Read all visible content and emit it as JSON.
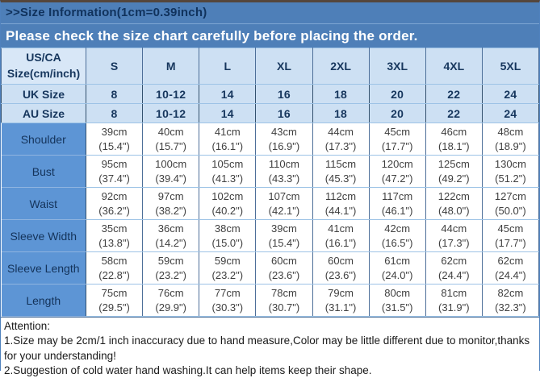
{
  "banner": {
    "title": ">>Size Information(1cm=0.39inch)",
    "subtitle": "Please check the size chart carefully before placing the order."
  },
  "table": {
    "corner": {
      "line1": "US/CA",
      "line2": "Size(cm/inch)"
    },
    "columns": [
      "S",
      "M",
      "L",
      "XL",
      "2XL",
      "3XL",
      "4XL",
      "5XL"
    ],
    "size_rows": [
      {
        "label": "UK Size",
        "values": [
          "8",
          "10-12",
          "14",
          "16",
          "18",
          "20",
          "22",
          "24"
        ]
      },
      {
        "label": "AU Size",
        "values": [
          "8",
          "10-12",
          "14",
          "16",
          "18",
          "20",
          "22",
          "24"
        ]
      }
    ],
    "measure_rows": [
      {
        "label": "Shoulder",
        "cm": [
          39,
          40,
          41,
          43,
          44,
          45,
          46,
          48
        ],
        "inch": [
          "15.4",
          "15.7",
          "16.1",
          "16.9",
          "17.3",
          "17.7",
          "18.1",
          "18.9"
        ]
      },
      {
        "label": "Bust",
        "cm": [
          95,
          100,
          105,
          110,
          115,
          120,
          125,
          130
        ],
        "inch": [
          "37.4",
          "39.4",
          "41.3",
          "43.3",
          "45.3",
          "47.2",
          "49.2",
          "51.2"
        ]
      },
      {
        "label": "Waist",
        "cm": [
          92,
          97,
          102,
          107,
          112,
          117,
          122,
          127
        ],
        "inch": [
          "36.2",
          "38.2",
          "40.2",
          "42.1",
          "44.1",
          "46.1",
          "48.0",
          "50.0"
        ]
      },
      {
        "label": "Sleeve Width",
        "cm": [
          35,
          36,
          38,
          39,
          41,
          42,
          44,
          45
        ],
        "inch": [
          "13.8",
          "14.2",
          "15.0",
          "15.4",
          "16.1",
          "16.5",
          "17.3",
          "17.7"
        ]
      },
      {
        "label": "Sleeve Length",
        "cm": [
          58,
          59,
          59,
          60,
          60,
          61,
          62,
          62
        ],
        "inch": [
          "22.8",
          "23.2",
          "23.2",
          "23.6",
          "23.6",
          "24.0",
          "24.4",
          "24.4"
        ]
      },
      {
        "label": "Length",
        "cm": [
          75,
          76,
          77,
          78,
          79,
          80,
          81,
          82
        ],
        "inch": [
          "29.5",
          "29.9",
          "30.3",
          "30.7",
          "31.1",
          "31.5",
          "31.9",
          "32.3"
        ]
      }
    ],
    "cm_suffix": "cm"
  },
  "attention": {
    "title": "Attention:",
    "line1": "1.Size may be 2cm/1 inch inaccuracy due to hand measure,Color may be little different due to monitor,thanks for your understanding!",
    "line2": "2.Suggestion of cold water hand washing.It can help items keep their shape."
  },
  "colors": {
    "banner_blue": "#4e7fb8",
    "header_light_blue": "#cde0f3",
    "label_column_blue": "#5d95d5",
    "navy_text": "#16365d",
    "data_text": "#3f3f3f"
  }
}
